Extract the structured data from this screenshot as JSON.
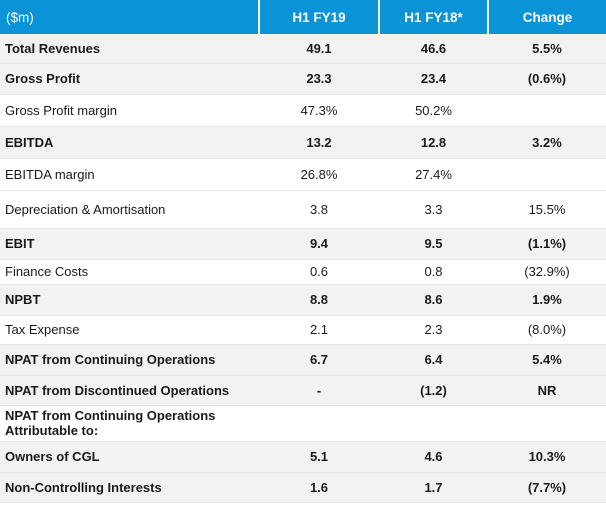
{
  "colors": {
    "header_bg": "#0a93d6",
    "row_shade": "#f2f2f2",
    "rule": "#e6e6e6"
  },
  "table": {
    "headers": [
      "($m)",
      "H1 FY19",
      "H1 FY18*",
      "Change"
    ],
    "rows": [
      {
        "label": "Total Revenues",
        "h1fy19": "49.1",
        "h1fy18": "46.6",
        "change": "5.5%",
        "bold": true,
        "shaded": true,
        "height": 29
      },
      {
        "label": "Gross Profit",
        "h1fy19": "23.3",
        "h1fy18": "23.4",
        "change": "(0.6%)",
        "bold": true,
        "shaded": true,
        "height": 31
      },
      {
        "label": "Gross Profit margin",
        "h1fy19": "47.3%",
        "h1fy18": "50.2%",
        "change": "",
        "bold": false,
        "shaded": false,
        "height": 32
      },
      {
        "label": "EBITDA",
        "h1fy19": "13.2",
        "h1fy18": "12.8",
        "change": "3.2%",
        "bold": true,
        "shaded": true,
        "height": 32
      },
      {
        "label": "EBITDA margin",
        "h1fy19": "26.8%",
        "h1fy18": "27.4%",
        "change": "",
        "bold": false,
        "shaded": false,
        "height": 32
      },
      {
        "label": "Depreciation & Amortisation",
        "h1fy19": "3.8",
        "h1fy18": "3.3",
        "change": "15.5%",
        "bold": false,
        "shaded": false,
        "height": 38
      },
      {
        "label": "EBIT",
        "h1fy19": "9.4",
        "h1fy18": "9.5",
        "change": "(1.1%)",
        "bold": true,
        "shaded": true,
        "height": 31
      },
      {
        "label": "Finance Costs",
        "h1fy19": "0.6",
        "h1fy18": "0.8",
        "change": "(32.9%)",
        "bold": false,
        "shaded": false,
        "height": 25
      },
      {
        "label": "NPBT",
        "h1fy19": "8.8",
        "h1fy18": "8.6",
        "change": "1.9%",
        "bold": true,
        "shaded": true,
        "height": 31
      },
      {
        "label": "Tax Expense",
        "h1fy19": "2.1",
        "h1fy18": "2.3",
        "change": "(8.0%)",
        "bold": false,
        "shaded": false,
        "height": 29
      },
      {
        "label": "NPAT from Continuing Operations",
        "h1fy19": "6.7",
        "h1fy18": "6.4",
        "change": "5.4%",
        "bold": true,
        "shaded": true,
        "height": 31
      },
      {
        "label": "NPAT from Discontinued Operations",
        "h1fy19": "-",
        "h1fy18": "(1.2)",
        "change": "NR",
        "bold": true,
        "shaded": true,
        "height": 30
      },
      {
        "label": "NPAT from Continuing Operations Attributable to:",
        "h1fy19": "",
        "h1fy18": "",
        "change": "",
        "bold": true,
        "shaded": false,
        "height": 36,
        "multi": true
      },
      {
        "label": "Owners of CGL",
        "h1fy19": "5.1",
        "h1fy18": "4.6",
        "change": "10.3%",
        "bold": true,
        "shaded": true,
        "height": 31
      },
      {
        "label": "Non-Controlling Interests",
        "h1fy19": "1.6",
        "h1fy18": "1.7",
        "change": "(7.7%)",
        "bold": true,
        "shaded": true,
        "height": 30
      }
    ]
  }
}
